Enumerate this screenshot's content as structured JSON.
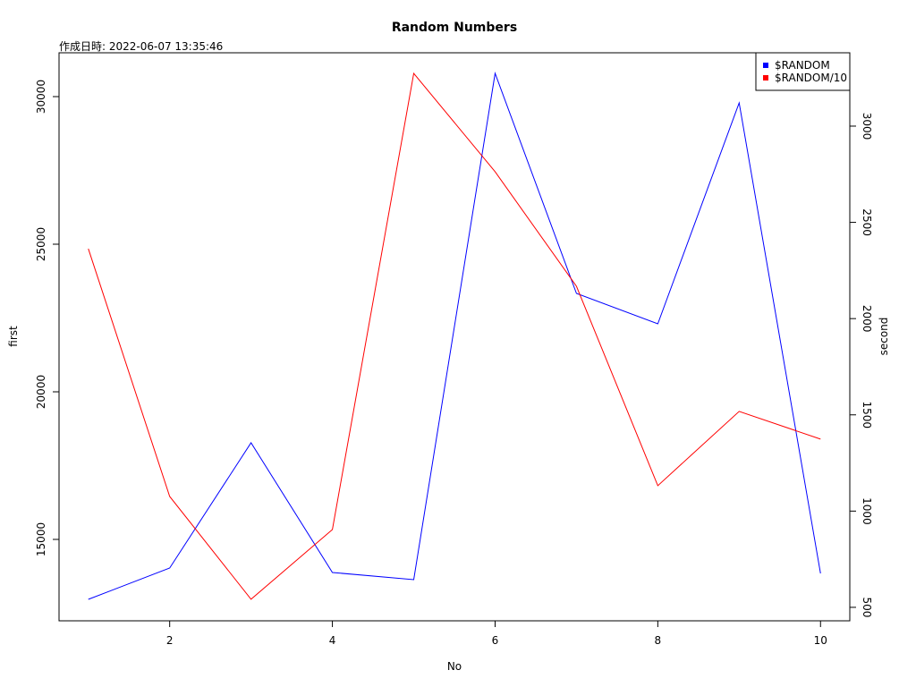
{
  "chart_data": {
    "type": "line",
    "title": "Random Numbers",
    "subtitle": "作成日時: 2022-06-07 13:35:46",
    "x_label": "No",
    "y_label": "first",
    "y2_label": "second",
    "x": [
      1,
      2,
      3,
      4,
      5,
      6,
      7,
      8,
      9,
      10
    ],
    "xlim": [
      0.64,
      10.36
    ],
    "xticks": [
      2,
      4,
      6,
      8,
      10
    ],
    "ylim": [
      12242,
      31485
    ],
    "yticks": [
      15000,
      20000,
      25000,
      30000
    ],
    "y2lim": [
      430,
      3381
    ],
    "y2ticks": [
      500,
      1000,
      1500,
      2000,
      2500,
      3000
    ],
    "legend": "top-right",
    "series": [
      {
        "name": "$RANDOM",
        "color": "#0000ff",
        "values": [
          12970,
          14030,
          18273,
          13879,
          13636,
          30788,
          23333,
          22303,
          29788,
          13848
        ]
      },
      {
        "name": "$RANDOM/10",
        "color": "#ff0000",
        "axis": "y2",
        "values": [
          2363,
          1076,
          542,
          904,
          3274,
          2763,
          2168,
          1132,
          1518,
          1374
        ]
      }
    ]
  }
}
